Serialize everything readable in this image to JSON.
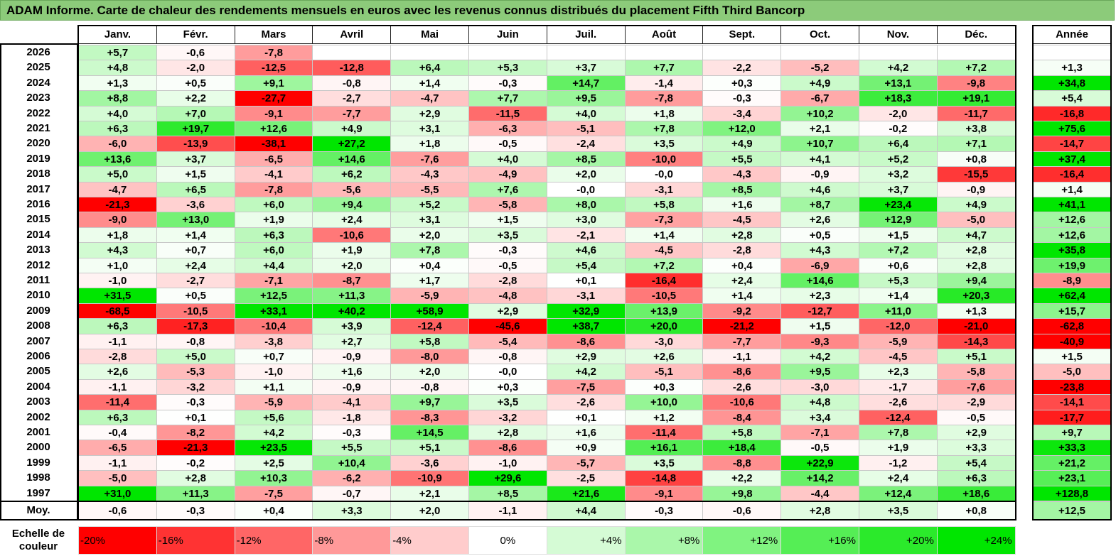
{
  "title": "ADAM Informe. Carte de chaleur des rendements mensuels en euros avec les revenus connus distribués du placement Fifth Third Bancorp",
  "chart_data": {
    "type": "heatmap",
    "months": [
      "Janv.",
      "Févr.",
      "Mars",
      "Avril",
      "Mai",
      "Juin",
      "Juil.",
      "Août",
      "Sept.",
      "Oct.",
      "Nov.",
      "Déc."
    ],
    "annual_header": "Année",
    "rows": [
      {
        "year": "2026",
        "values": [
          "+5,7",
          "-0,6",
          "-7,8",
          "",
          "",
          "",
          "",
          "",
          "",
          "",
          "",
          ""
        ],
        "annual": ""
      },
      {
        "year": "2025",
        "values": [
          "+4,8",
          "-2,0",
          "-12,5",
          "-12,8",
          "+6,4",
          "+5,3",
          "+3,7",
          "+7,7",
          "-2,2",
          "-5,2",
          "+4,2",
          "+7,2"
        ],
        "annual": "+1,3"
      },
      {
        "year": "2024",
        "values": [
          "+1,3",
          "+0,5",
          "+9,1",
          "-0,8",
          "+1,4",
          "-0,3",
          "+14,7",
          "-1,4",
          "+0,3",
          "+4,9",
          "+13,1",
          "-9,8"
        ],
        "annual": "+34,8"
      },
      {
        "year": "2023",
        "values": [
          "+8,8",
          "+2,2",
          "-27,7",
          "-2,7",
          "-4,7",
          "+7,7",
          "+9,5",
          "-7,8",
          "-0,3",
          "-6,7",
          "+18,3",
          "+19,1"
        ],
        "annual": "+5,4"
      },
      {
        "year": "2022",
        "values": [
          "+4,0",
          "+7,0",
          "-9,1",
          "-7,7",
          "+2,9",
          "-11,5",
          "+4,0",
          "+1,8",
          "-3,4",
          "+10,2",
          "-2,0",
          "-11,7"
        ],
        "annual": "-16,8"
      },
      {
        "year": "2021",
        "values": [
          "+6,3",
          "+19,7",
          "+12,6",
          "+4,9",
          "+3,1",
          "-6,3",
          "-5,1",
          "+7,8",
          "+12,0",
          "+2,1",
          "-0,2",
          "+3,8"
        ],
        "annual": "+75,6"
      },
      {
        "year": "2020",
        "values": [
          "-6,0",
          "-13,9",
          "-38,1",
          "+27,2",
          "+1,8",
          "-0,5",
          "-2,4",
          "+3,5",
          "+4,9",
          "+10,7",
          "+6,4",
          "+7,1"
        ],
        "annual": "-14,7"
      },
      {
        "year": "2019",
        "values": [
          "+13,6",
          "+3,7",
          "-6,5",
          "+14,6",
          "-7,6",
          "+4,0",
          "+8,5",
          "-10,0",
          "+5,5",
          "+4,1",
          "+5,2",
          "+0,8"
        ],
        "annual": "+37,4"
      },
      {
        "year": "2018",
        "values": [
          "+5,0",
          "+1,5",
          "-4,1",
          "+6,2",
          "-4,3",
          "-4,9",
          "+2,0",
          "-0,0",
          "-4,3",
          "-0,9",
          "+3,2",
          "-15,5"
        ],
        "annual": "-16,4"
      },
      {
        "year": "2017",
        "values": [
          "-4,7",
          "+6,5",
          "-7,8",
          "-5,6",
          "-5,5",
          "+7,6",
          "-0,0",
          "-3,1",
          "+8,5",
          "+4,6",
          "+3,7",
          "-0,9"
        ],
        "annual": "+1,4"
      },
      {
        "year": "2016",
        "values": [
          "-21,3",
          "-3,6",
          "+6,0",
          "+9,4",
          "+5,2",
          "-5,8",
          "+8,0",
          "+5,8",
          "+1,6",
          "+8,7",
          "+23,4",
          "+4,9"
        ],
        "annual": "+41,1"
      },
      {
        "year": "2015",
        "values": [
          "-9,0",
          "+13,0",
          "+1,9",
          "+2,4",
          "+3,1",
          "+1,5",
          "+3,0",
          "-7,3",
          "-4,5",
          "+2,6",
          "+12,9",
          "-5,0"
        ],
        "annual": "+12,6"
      },
      {
        "year": "2014",
        "values": [
          "+1,8",
          "+1,4",
          "+6,3",
          "-10,6",
          "+2,0",
          "+3,5",
          "-2,1",
          "+1,4",
          "+2,8",
          "+0,5",
          "+1,5",
          "+4,7"
        ],
        "annual": "+12,6"
      },
      {
        "year": "2013",
        "values": [
          "+4,3",
          "+0,7",
          "+6,0",
          "+1,9",
          "+7,8",
          "-0,3",
          "+4,6",
          "-4,5",
          "-2,8",
          "+4,3",
          "+7,2",
          "+2,8"
        ],
        "annual": "+35,8"
      },
      {
        "year": "2012",
        "values": [
          "+1,0",
          "+2,4",
          "+4,4",
          "+2,0",
          "+0,4",
          "-0,5",
          "+5,4",
          "+7,2",
          "+0,4",
          "-6,9",
          "+0,6",
          "+2,8"
        ],
        "annual": "+19,9"
      },
      {
        "year": "2011",
        "values": [
          "-1,0",
          "-2,7",
          "-7,1",
          "-8,7",
          "+1,7",
          "-2,8",
          "+0,1",
          "-16,4",
          "+2,4",
          "+14,6",
          "+5,3",
          "+9,4"
        ],
        "annual": "-8,9"
      },
      {
        "year": "2010",
        "values": [
          "+31,5",
          "+0,5",
          "+12,5",
          "+11,3",
          "-5,9",
          "-4,8",
          "-3,1",
          "-10,5",
          "+1,4",
          "+2,3",
          "+1,4",
          "+20,3"
        ],
        "annual": "+62,4"
      },
      {
        "year": "2009",
        "values": [
          "-68,5",
          "-10,5",
          "+33,1",
          "+40,2",
          "+58,9",
          "+2,9",
          "+32,9",
          "+13,9",
          "-9,2",
          "-12,7",
          "+11,0",
          "+1,3"
        ],
        "annual": "+15,7"
      },
      {
        "year": "2008",
        "values": [
          "+6,3",
          "-17,3",
          "-10,4",
          "+3,9",
          "-12,4",
          "-45,6",
          "+38,7",
          "+20,0",
          "-21,2",
          "+1,5",
          "-12,0",
          "-21,0"
        ],
        "annual": "-62,8"
      },
      {
        "year": "2007",
        "values": [
          "-1,1",
          "-0,8",
          "-3,8",
          "+2,7",
          "+5,8",
          "-5,4",
          "-8,6",
          "-3,0",
          "-7,7",
          "-9,3",
          "-5,9",
          "-14,3"
        ],
        "annual": "-40,9"
      },
      {
        "year": "2006",
        "values": [
          "-2,8",
          "+5,0",
          "+0,7",
          "-0,9",
          "-8,0",
          "-0,8",
          "+2,9",
          "+2,6",
          "-1,1",
          "+4,2",
          "-4,5",
          "+5,1"
        ],
        "annual": "+1,5"
      },
      {
        "year": "2005",
        "values": [
          "+2,6",
          "-5,3",
          "-1,0",
          "+1,6",
          "+2,0",
          "-0,0",
          "+4,2",
          "-5,1",
          "-8,6",
          "+9,5",
          "+2,3",
          "-5,8"
        ],
        "annual": "-5,0"
      },
      {
        "year": "2004",
        "values": [
          "-1,1",
          "-3,2",
          "+1,1",
          "-0,9",
          "-0,8",
          "+0,3",
          "-7,5",
          "+0,3",
          "-2,6",
          "-3,0",
          "-1,7",
          "-7,6"
        ],
        "annual": "-23,8"
      },
      {
        "year": "2003",
        "values": [
          "-11,4",
          "-0,3",
          "-5,9",
          "-4,1",
          "+9,7",
          "+3,5",
          "-2,6",
          "+10,0",
          "-10,6",
          "+4,8",
          "-2,6",
          "-2,9"
        ],
        "annual": "-14,1"
      },
      {
        "year": "2002",
        "values": [
          "+6,3",
          "+0,1",
          "+5,6",
          "-1,8",
          "-8,3",
          "-3,2",
          "+0,1",
          "+1,2",
          "-8,4",
          "+3,4",
          "-12,4",
          "-0,5"
        ],
        "annual": "-17,7"
      },
      {
        "year": "2001",
        "values": [
          "-0,4",
          "-8,2",
          "+4,2",
          "-0,3",
          "+14,5",
          "+2,8",
          "+1,6",
          "-11,4",
          "+5,8",
          "-7,1",
          "+7,8",
          "+2,9"
        ],
        "annual": "+9,7"
      },
      {
        "year": "2000",
        "values": [
          "-6,5",
          "-21,3",
          "+23,5",
          "+5,5",
          "+5,1",
          "-8,6",
          "+0,9",
          "+16,1",
          "+18,4",
          "-0,5",
          "+1,9",
          "+3,3"
        ],
        "annual": "+33,3"
      },
      {
        "year": "1999",
        "values": [
          "-1,1",
          "-0,2",
          "+2,5",
          "+10,4",
          "-3,6",
          "-1,0",
          "-5,7",
          "+3,5",
          "-8,8",
          "+22,9",
          "-1,2",
          "+5,4"
        ],
        "annual": "+21,2"
      },
      {
        "year": "1998",
        "values": [
          "-5,0",
          "+2,8",
          "+10,3",
          "-6,2",
          "-10,9",
          "+29,6",
          "-2,5",
          "-14,8",
          "+2,2",
          "+14,2",
          "+2,4",
          "+6,3"
        ],
        "annual": "+23,1"
      },
      {
        "year": "1997",
        "values": [
          "+31,0",
          "+11,3",
          "-7,5",
          "-0,7",
          "+2,1",
          "+8,5",
          "+21,6",
          "-9,1",
          "+9,8",
          "-4,4",
          "+12,4",
          "+18,6"
        ],
        "annual": "+128,8"
      }
    ],
    "average": {
      "label": "Moy.",
      "values": [
        "-0,6",
        "-0,3",
        "+0,4",
        "+3,3",
        "+2,0",
        "-1,1",
        "+4,4",
        "-0,3",
        "-0,6",
        "+2,8",
        "+3,5",
        "+0,8"
      ],
      "annual": "+12,5"
    },
    "scale": {
      "label": "Echelle de couleur",
      "steps": [
        "-20%",
        "-16%",
        "-12%",
        "-8%",
        "-4%",
        "0%",
        "+4%",
        "+8%",
        "+12%",
        "+16%",
        "+20%",
        "+24%"
      ]
    },
    "colors": {
      "negative": "#ff0000",
      "neutral": "#ffffff",
      "positive": "#00e600",
      "title_bar": "#8ccb7a"
    }
  }
}
